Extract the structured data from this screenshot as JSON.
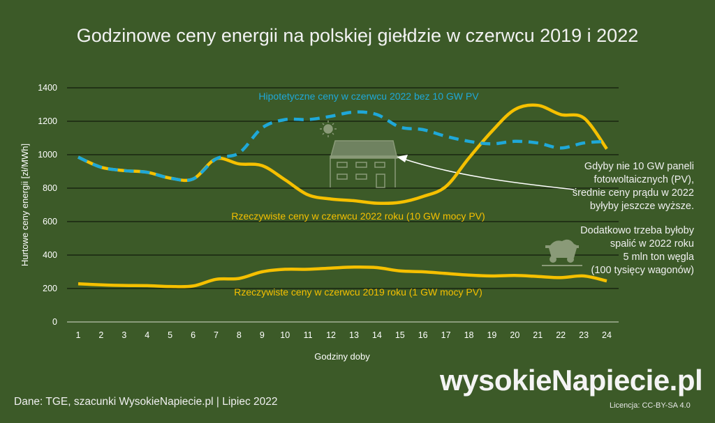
{
  "title": "Godzinowe ceny energii na polskiej giełdzie w czerwcu 2019 i 2022",
  "source": "Dane: TGE, szacunki WysokieNapiecie.pl  |  Lipiec 2022",
  "logo_text": "wysokieNapiecie.pl",
  "license": "Licencja: CC-BY-SA 4.0",
  "notes": {
    "pv_lines": [
      "Gdyby nie 10 GW paneli",
      "fotowoltaicznych (PV),",
      "średnie ceny prądu w 2022",
      "byłyby jeszcze wyższe."
    ],
    "coal_lines": [
      "Dodatkowo trzeba byłoby",
      "spalić w 2022 roku",
      "5 mln ton węgla",
      "(100 tysięcy wagonów)"
    ]
  },
  "icons": [
    "sun-icon",
    "solar-house-icon",
    "coal-wagon-icon",
    "arrow-icon"
  ],
  "chart_data": {
    "type": "line",
    "title": "Godzinowe ceny energii na polskiej giełdzie w czerwcu 2019 i 2022",
    "xlabel": "Godziny doby",
    "ylabel": "Hurtowe ceny energii [zł/MWh]",
    "ylim": [
      0,
      1400
    ],
    "yticks": [
      0,
      200,
      400,
      600,
      800,
      1000,
      1200,
      1400
    ],
    "grid": true,
    "x": [
      1,
      2,
      3,
      4,
      5,
      6,
      7,
      8,
      9,
      10,
      11,
      12,
      13,
      14,
      15,
      16,
      17,
      18,
      19,
      20,
      21,
      22,
      23,
      24
    ],
    "series": [
      {
        "name": "Hipotetyczne ceny w czerwcu 2022 bez 10 GW PV",
        "color": "#1fa8d8",
        "dashed": true,
        "values": [
          985,
          925,
          905,
          895,
          860,
          855,
          975,
          1010,
          1160,
          1210,
          1210,
          1230,
          1255,
          1240,
          1165,
          1150,
          1110,
          1080,
          1065,
          1080,
          1070,
          1040,
          1070,
          1080
        ]
      },
      {
        "name": "Rzeczywiste ceny w czerwcu 2022 roku (10 GW mocy PV)",
        "color": "#f5c000",
        "dashed": false,
        "values": [
          985,
          925,
          905,
          895,
          860,
          855,
          975,
          945,
          935,
          850,
          760,
          735,
          725,
          710,
          715,
          750,
          810,
          980,
          1140,
          1270,
          1295,
          1240,
          1220,
          1035
        ]
      },
      {
        "name": "Rzeczywiste ceny w czerwcu 2019 roku (1 GW mocy PV)",
        "color": "#f5c000",
        "dashed": false,
        "values": [
          228,
          222,
          218,
          217,
          212,
          215,
          255,
          260,
          300,
          315,
          315,
          322,
          328,
          325,
          305,
          300,
          290,
          280,
          275,
          278,
          272,
          265,
          275,
          245
        ]
      }
    ]
  }
}
